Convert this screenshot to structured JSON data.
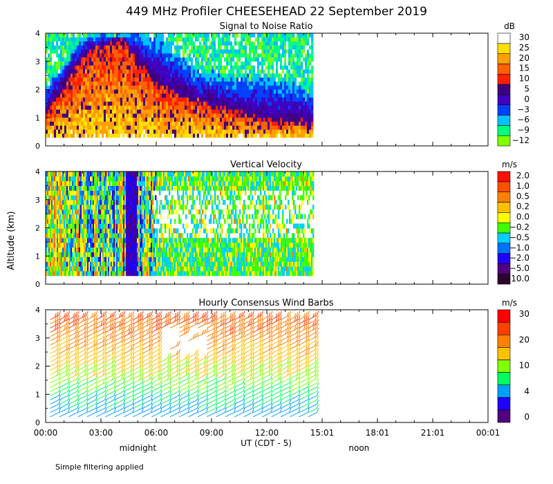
{
  "title": "449 MHz Profiler CHEESEHEAD 22 September 2019",
  "footnote": "Simple filtering applied",
  "y_axis_label": "Altitude (km)",
  "x_axis": {
    "label": "UT  (CDT - 5)",
    "ticks": [
      "00:00",
      "03:00",
      "06:00",
      "09:00",
      "12:00",
      "15:01",
      "18:01",
      "21:01",
      "00:01"
    ],
    "sub_labels": [
      {
        "text": "midnight",
        "hour": 5
      },
      {
        "text": "noon",
        "hour": 17
      }
    ],
    "range_hours": [
      0,
      24
    ],
    "data_end_hour": 14.5
  },
  "colors": {
    "snr": [
      "#80ff00",
      "#00ff80",
      "#00c0ff",
      "#0040ff",
      "#4000c0",
      "#400080",
      "#ff2000",
      "#ff6000",
      "#ffa000",
      "#ffe000",
      "#ffffff"
    ],
    "vv": [
      "#300030",
      "#500080",
      "#2000ff",
      "#0070ff",
      "#00d0ff",
      "#40ff00",
      "#ffff00",
      "#ffc000",
      "#ff8000",
      "#ff5000",
      "#ff1000"
    ],
    "wind": [
      "#500080",
      "#2000ff",
      "#00a0ff",
      "#00ff60",
      "#80ff00",
      "#ffc000",
      "#ff8000",
      "#ff4000",
      "#ff0000"
    ]
  },
  "chart_data": [
    {
      "type": "heatmap",
      "title": "Signal to Noise Ratio",
      "units": "dB",
      "ylim": [
        0,
        4
      ],
      "y_ticks": [
        "0",
        "1",
        "2",
        "3",
        "4"
      ],
      "colorbar_labels": [
        "30",
        "25",
        "20",
        "15",
        "10",
        "5",
        "0",
        "−3",
        "−6",
        "−9",
        "−12"
      ],
      "x_hours": [
        0,
        14.5
      ],
      "y_km": [
        0.3,
        4.0
      ],
      "boundaries": [
        {
          "hour": 0,
          "warm_top_km": 1.2,
          "upper_km": 2.1
        },
        {
          "hour": 2,
          "warm_top_km": 3.2,
          "upper_km": 3.9
        },
        {
          "hour": 4,
          "warm_top_km": 3.8,
          "upper_km": 4.0
        },
        {
          "hour": 6,
          "warm_top_km": 2.2,
          "upper_km": 3.9
        },
        {
          "hour": 8,
          "warm_top_km": 1.6,
          "upper_km": 2.8
        },
        {
          "hour": 10,
          "warm_top_km": 1.3,
          "upper_km": 2.4
        },
        {
          "hour": 12,
          "warm_top_km": 0.9,
          "upper_km": 2.5
        },
        {
          "hour": 14.5,
          "warm_top_km": 0.8,
          "upper_km": 2.0
        }
      ]
    },
    {
      "type": "heatmap",
      "title": "Vertical Velocity",
      "units": "m/s",
      "ylim": [
        0,
        4
      ],
      "y_ticks": [
        "0",
        "1",
        "2",
        "3",
        "4"
      ],
      "colorbar_labels": [
        "2.0",
        "1.0",
        "0.5",
        "0.2",
        "0.0",
        "−0.2",
        "−0.5",
        "−1.0",
        "−2.0",
        "−5.0",
        "−10.0"
      ],
      "x_hours": [
        0,
        14.5
      ],
      "y_km": [
        0.3,
        4.0
      ],
      "strong_descent_hours": [
        4.3,
        4.9
      ]
    },
    {
      "type": "scatter",
      "title": "Hourly Consensus Wind Barbs",
      "units": "m/s",
      "ylim": [
        0,
        4
      ],
      "y_ticks": [
        "0",
        "1",
        "2",
        "3",
        "4"
      ],
      "colorbar_labels": [
        "30",
        "20",
        "10",
        "4",
        "0"
      ],
      "x_hours": [
        0,
        14.5
      ],
      "y_km": [
        0.2,
        3.7
      ],
      "speed_profile": [
        {
          "alt_km": 0.3,
          "speed_ms": 8
        },
        {
          "alt_km": 1.0,
          "speed_ms": 12
        },
        {
          "alt_km": 1.6,
          "speed_ms": 17
        },
        {
          "alt_km": 2.4,
          "speed_ms": 21
        },
        {
          "alt_km": 3.2,
          "speed_ms": 25
        },
        {
          "alt_km": 3.7,
          "speed_ms": 27
        }
      ]
    }
  ]
}
